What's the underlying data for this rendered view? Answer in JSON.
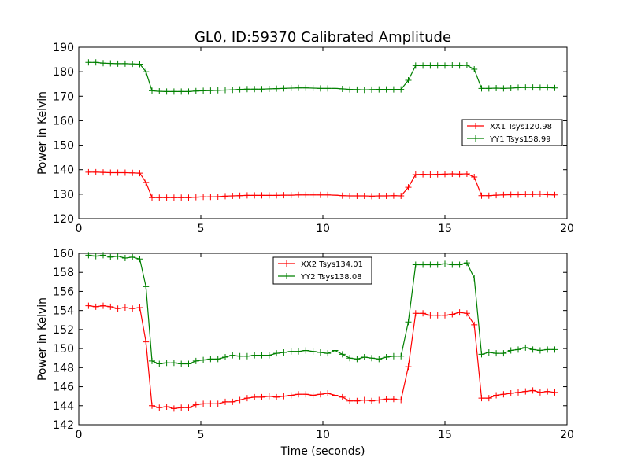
{
  "figure": {
    "title": "GL0, ID:59370 Calibrated Amplitude",
    "shared_xlabel": "Time (seconds)"
  },
  "chart_data": [
    {
      "type": "line",
      "ylabel": "Power in Kelvin",
      "xlabel": "",
      "xlim": [
        0,
        20
      ],
      "ylim": [
        120,
        190
      ],
      "xticks": [
        0,
        5,
        10,
        15,
        20
      ],
      "yticks": [
        120,
        130,
        140,
        150,
        160,
        170,
        180,
        190
      ],
      "legend_position": "right",
      "grid": false,
      "x": [
        0.4,
        0.7,
        1.0,
        1.3,
        1.6,
        1.9,
        2.2,
        2.5,
        2.75,
        3.0,
        3.3,
        3.6,
        3.9,
        4.2,
        4.5,
        4.8,
        5.1,
        5.4,
        5.7,
        6.0,
        6.3,
        6.6,
        6.9,
        7.2,
        7.5,
        7.8,
        8.1,
        8.4,
        8.7,
        9.0,
        9.3,
        9.6,
        9.9,
        10.2,
        10.5,
        10.8,
        11.1,
        11.4,
        11.7,
        12.0,
        12.3,
        12.6,
        12.9,
        13.2,
        13.5,
        13.8,
        14.1,
        14.4,
        14.7,
        15.0,
        15.3,
        15.6,
        15.9,
        16.2,
        16.5,
        16.8,
        17.1,
        17.4,
        17.7,
        18.0,
        18.3,
        18.6,
        18.9,
        19.2,
        19.5
      ],
      "series": [
        {
          "name": "XX1 Tsys120.98",
          "color": "#ff0000",
          "values": [
            139.0,
            139.0,
            138.9,
            138.8,
            138.8,
            138.8,
            138.7,
            138.6,
            134.8,
            128.6,
            128.6,
            128.6,
            128.6,
            128.6,
            128.6,
            128.8,
            128.9,
            128.9,
            129.0,
            129.2,
            129.3,
            129.4,
            129.5,
            129.5,
            129.5,
            129.5,
            129.5,
            129.6,
            129.6,
            129.7,
            129.7,
            129.7,
            129.7,
            129.7,
            129.6,
            129.4,
            129.3,
            129.3,
            129.3,
            129.2,
            129.3,
            129.3,
            129.4,
            129.3,
            132.8,
            138.0,
            138.1,
            138.0,
            138.1,
            138.2,
            138.3,
            138.2,
            138.3,
            137.0,
            129.4,
            129.4,
            129.6,
            129.7,
            129.8,
            129.8,
            129.9,
            129.9,
            130.0,
            129.8,
            129.7
          ]
        },
        {
          "name": "YY1 Tsys158.99",
          "color": "#008000",
          "values": [
            183.8,
            183.8,
            183.5,
            183.4,
            183.3,
            183.3,
            183.2,
            183.1,
            180.0,
            172.2,
            172.0,
            171.9,
            171.9,
            171.9,
            171.9,
            172.1,
            172.2,
            172.3,
            172.4,
            172.5,
            172.6,
            172.8,
            172.9,
            172.9,
            172.9,
            173.0,
            173.1,
            173.2,
            173.3,
            173.4,
            173.4,
            173.3,
            173.2,
            173.2,
            173.2,
            173.0,
            172.8,
            172.7,
            172.6,
            172.7,
            172.8,
            172.8,
            172.8,
            172.8,
            176.5,
            182.5,
            182.5,
            182.5,
            182.5,
            182.5,
            182.6,
            182.5,
            182.6,
            181.0,
            173.2,
            173.2,
            173.3,
            173.2,
            173.3,
            173.5,
            173.6,
            173.6,
            173.5,
            173.5,
            173.4
          ]
        }
      ]
    },
    {
      "type": "line",
      "ylabel": "Power in Kelvin",
      "xlabel": "Time (seconds)",
      "xlim": [
        0,
        20
      ],
      "ylim": [
        142,
        160
      ],
      "xticks": [
        0,
        5,
        10,
        15,
        20
      ],
      "yticks": [
        142,
        144,
        146,
        148,
        150,
        152,
        154,
        156,
        158,
        160
      ],
      "legend_position": "top-center",
      "grid": false,
      "x": [
        0.4,
        0.7,
        1.0,
        1.3,
        1.6,
        1.9,
        2.2,
        2.5,
        2.75,
        3.0,
        3.3,
        3.6,
        3.9,
        4.2,
        4.5,
        4.8,
        5.1,
        5.4,
        5.7,
        6.0,
        6.3,
        6.6,
        6.9,
        7.2,
        7.5,
        7.8,
        8.1,
        8.4,
        8.7,
        9.0,
        9.3,
        9.6,
        9.9,
        10.2,
        10.5,
        10.8,
        11.1,
        11.4,
        11.7,
        12.0,
        12.3,
        12.6,
        12.9,
        13.2,
        13.5,
        13.8,
        14.1,
        14.4,
        14.7,
        15.0,
        15.3,
        15.6,
        15.9,
        16.2,
        16.5,
        16.8,
        17.1,
        17.4,
        17.7,
        18.0,
        18.3,
        18.6,
        18.9,
        19.2,
        19.5
      ],
      "series": [
        {
          "name": "XX2 Tsys134.01",
          "color": "#ff0000",
          "values": [
            154.5,
            154.4,
            154.5,
            154.4,
            154.2,
            154.3,
            154.2,
            154.3,
            150.7,
            144.0,
            143.8,
            143.9,
            143.7,
            143.8,
            143.8,
            144.1,
            144.2,
            144.2,
            144.2,
            144.4,
            144.4,
            144.6,
            144.8,
            144.9,
            144.9,
            145.0,
            144.9,
            145.0,
            145.1,
            145.2,
            145.2,
            145.1,
            145.2,
            145.3,
            145.1,
            144.9,
            144.5,
            144.5,
            144.6,
            144.5,
            144.6,
            144.7,
            144.7,
            144.6,
            148.1,
            153.7,
            153.7,
            153.5,
            153.5,
            153.5,
            153.6,
            153.8,
            153.7,
            152.5,
            144.8,
            144.8,
            145.1,
            145.2,
            145.3,
            145.4,
            145.5,
            145.6,
            145.4,
            145.5,
            145.4
          ]
        },
        {
          "name": "YY2 Tsys138.08",
          "color": "#008000",
          "values": [
            159.8,
            159.7,
            159.8,
            159.6,
            159.7,
            159.5,
            159.6,
            159.4,
            156.5,
            148.7,
            148.4,
            148.5,
            148.5,
            148.4,
            148.4,
            148.7,
            148.8,
            148.9,
            148.9,
            149.1,
            149.3,
            149.2,
            149.2,
            149.3,
            149.3,
            149.3,
            149.5,
            149.6,
            149.7,
            149.7,
            149.8,
            149.7,
            149.6,
            149.5,
            149.8,
            149.4,
            149.0,
            148.9,
            149.1,
            149.0,
            148.9,
            149.1,
            149.2,
            149.2,
            152.8,
            158.8,
            158.8,
            158.8,
            158.8,
            158.9,
            158.8,
            158.8,
            159.0,
            157.4,
            149.4,
            149.6,
            149.5,
            149.5,
            149.8,
            149.9,
            150.1,
            149.9,
            149.8,
            149.9,
            149.9
          ]
        }
      ]
    }
  ]
}
